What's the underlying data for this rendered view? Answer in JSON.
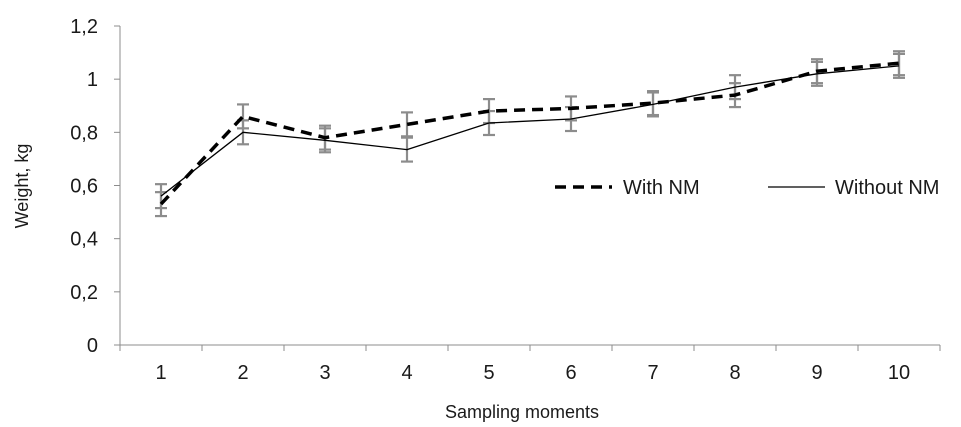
{
  "chart_data": {
    "type": "line",
    "xlabel": "Sampling moments",
    "ylabel": "Weight, kg",
    "categories": [
      "1",
      "2",
      "3",
      "4",
      "5",
      "6",
      "7",
      "8",
      "9",
      "10"
    ],
    "ylim": [
      0,
      1.2
    ],
    "yticks": [
      "0",
      "0,2",
      "0,4",
      "0,6",
      "0,8",
      "1",
      "1,2"
    ],
    "ytick_values": [
      0,
      0.2,
      0.4,
      0.6,
      0.8,
      1.0,
      1.2
    ],
    "grid": false,
    "legend_position": "right",
    "error_bar_color": "#8c8c8c",
    "series": [
      {
        "name": "With NM",
        "style": "dashed",
        "color": "#000000",
        "values": [
          0.53,
          0.86,
          0.78,
          0.83,
          0.88,
          0.89,
          0.91,
          0.94,
          1.03,
          1.06
        ],
        "errors": [
          0.045,
          0.045,
          0.045,
          0.045,
          0.045,
          0.045,
          0.045,
          0.045,
          0.045,
          0.045
        ]
      },
      {
        "name": "Without NM",
        "style": "solid",
        "color": "#000000",
        "values": [
          0.56,
          0.8,
          0.77,
          0.735,
          0.835,
          0.85,
          0.905,
          0.97,
          1.02,
          1.05
        ],
        "errors": [
          0.045,
          0.045,
          0.045,
          0.045,
          0.045,
          0.045,
          0.045,
          0.045,
          0.045,
          0.045
        ]
      }
    ]
  }
}
